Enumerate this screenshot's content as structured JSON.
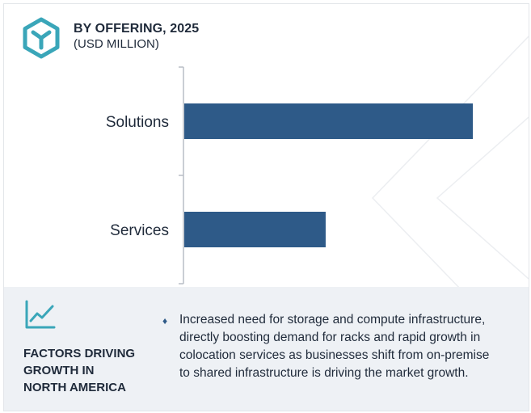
{
  "header": {
    "title": "BY OFFERING, 2025",
    "subtitle": "(USD MILLION)",
    "icon": "cube-icon",
    "accent_color": "#3aa6b9"
  },
  "chart_data": {
    "type": "bar",
    "orientation": "horizontal",
    "title": "BY OFFERING, 2025",
    "subtitle": "(USD MILLION)",
    "categories": [
      "Solutions",
      "Services"
    ],
    "values": [
      100,
      49
    ],
    "xlim": [
      0,
      100
    ],
    "bar_color": "#2e5a88",
    "grid": false,
    "value_axis_labels": false
  },
  "factors": {
    "icon": "trend-chart-icon",
    "heading_lines": [
      "FACTORS DRIVING",
      "GROWTH IN",
      "NORTH AMERICA"
    ],
    "bullet": "♦",
    "text_lines": [
      "Increased need for storage and compute infrastructure,",
      "directly boosting demand for racks and rapid growth in",
      "colocation services as businesses shift from on-premise",
      "to shared infrastructure is driving the market growth."
    ]
  }
}
